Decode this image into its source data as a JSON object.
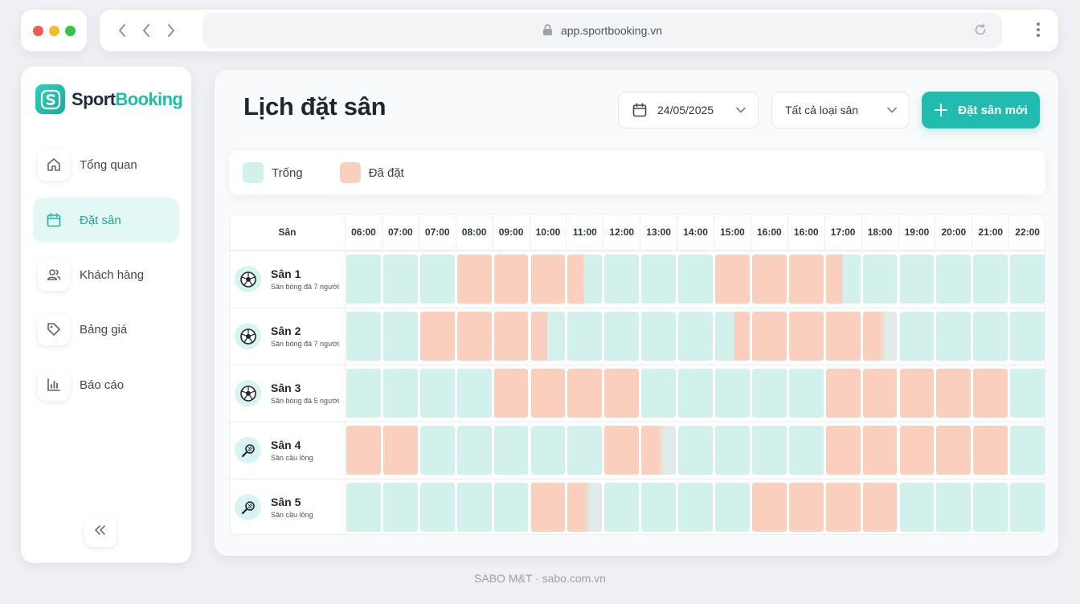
{
  "browser": {
    "url": "app.sportbooking.vn"
  },
  "sidebar": {
    "logo_main": "Sport",
    "logo_accent": "Booking",
    "items": [
      {
        "label": "Tổng quan",
        "icon": "home-icon"
      },
      {
        "label": "Đặt sân",
        "icon": "calendar-icon",
        "active": true
      },
      {
        "label": "Khách hàng",
        "icon": "users-icon"
      },
      {
        "label": "Bảng giá",
        "icon": "tag-icon"
      },
      {
        "label": "Báo cáo",
        "icon": "bar-chart-icon"
      }
    ]
  },
  "header": {
    "title": "Lịch đặt sân",
    "date_value": "24/05/2025",
    "type_filter": "Tất cả loại sân",
    "new_button": "Đặt sân mới"
  },
  "legend": {
    "free": "Trống",
    "booked": "Đã đặt"
  },
  "colors": {
    "accent": "#21bcaf",
    "free": "#d3f1ec",
    "booked": "#fbcfbd"
  },
  "schedule": {
    "court_header": "Sân",
    "times": [
      "06:00",
      "07:00",
      "07:00",
      "08:00",
      "09:00",
      "10:00",
      "11:00",
      "12:00",
      "13:00",
      "14:00",
      "15:00",
      "16:00",
      "16:00",
      "17:00",
      "18:00",
      "19:00",
      "20:00",
      "21:00",
      "22:00"
    ],
    "courts": [
      {
        "name": "Sân 1",
        "type": "Sân bóng đá 7 người",
        "icon": "soccer-ball-icon",
        "slots": [
          "free",
          "free",
          "free",
          "booked",
          "booked",
          "booked",
          "partial",
          "free",
          "free",
          "free",
          "booked",
          "booked",
          "booked",
          "partial",
          "free",
          "free",
          "free",
          "free",
          "free"
        ]
      },
      {
        "name": "Sân 2",
        "type": "Sân bóng đá 7 người",
        "icon": "soccer-ball-icon",
        "slots": [
          "free",
          "free",
          "booked",
          "booked",
          "booked",
          "partial",
          "free",
          "free",
          "free",
          "free",
          "late",
          "booked",
          "booked",
          "booked",
          "partial-gray",
          "free",
          "free",
          "free",
          "free"
        ]
      },
      {
        "name": "Sân 3",
        "type": "Sân bóng đá 5 người",
        "icon": "soccer-ball-icon",
        "slots": [
          "free",
          "free",
          "free",
          "free",
          "booked",
          "booked",
          "booked",
          "booked",
          "free",
          "free",
          "free",
          "free",
          "free",
          "booked",
          "booked",
          "booked",
          "booked",
          "booked",
          "free"
        ]
      },
      {
        "name": "Sân 4",
        "type": "Sân cầu lông",
        "icon": "badminton-racket-icon",
        "slots": [
          "booked",
          "booked",
          "free",
          "free",
          "free",
          "free",
          "free",
          "booked",
          "partial-gray",
          "free",
          "free",
          "free",
          "free",
          "booked",
          "booked",
          "booked",
          "booked",
          "booked",
          "free"
        ]
      },
      {
        "name": "Sân 5",
        "type": "Sân cầu lông",
        "icon": "badminton-racket-icon",
        "slots": [
          "free",
          "free",
          "free",
          "free",
          "free",
          "booked",
          "partial-gray",
          "free",
          "free",
          "free",
          "free",
          "booked",
          "booked",
          "booked",
          "booked",
          "free",
          "free",
          "free",
          "free"
        ]
      }
    ]
  },
  "footer": "SABO M&T · sabo.com.vn"
}
